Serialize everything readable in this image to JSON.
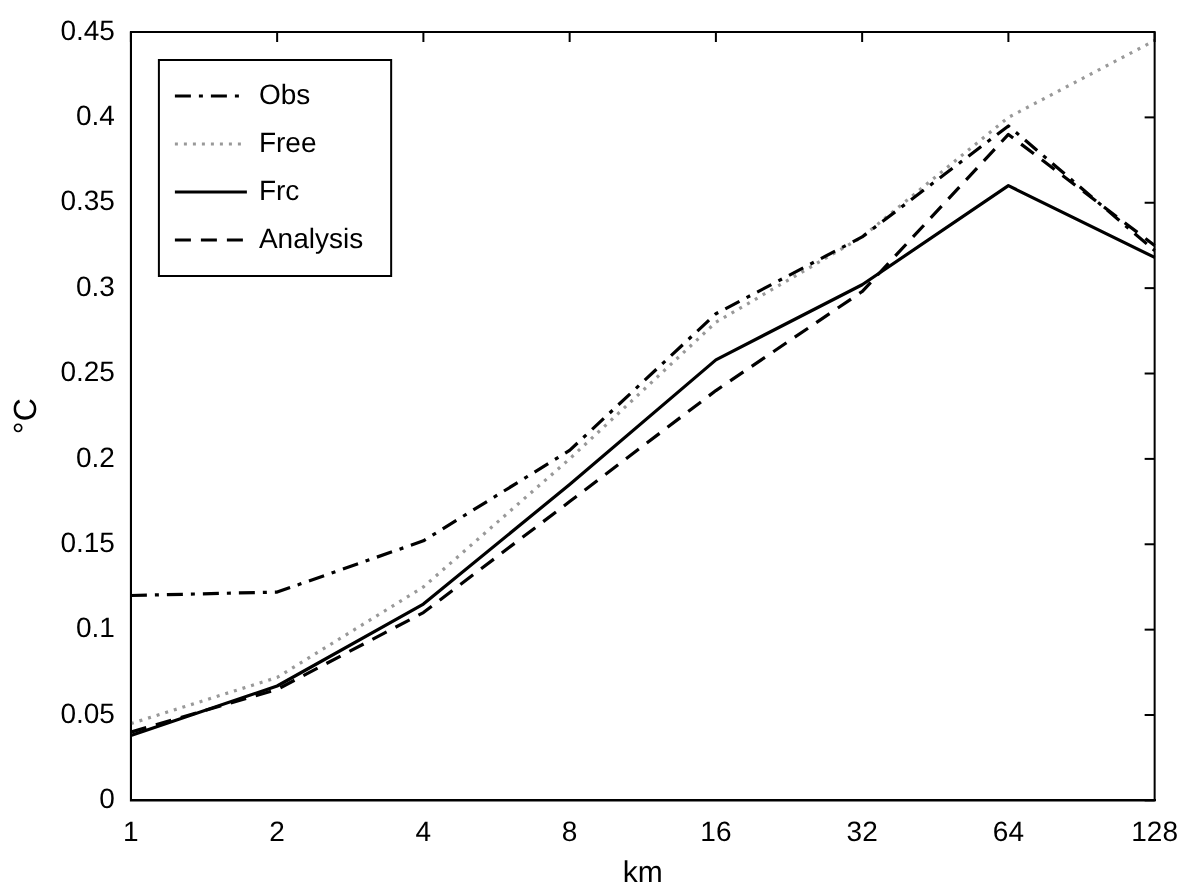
{
  "chart_data": {
    "type": "line",
    "xlabel": "km",
    "ylabel": "°C",
    "categories": [
      "1",
      "2",
      "4",
      "8",
      "16",
      "32",
      "64",
      "128"
    ],
    "series": [
      {
        "name": "Obs",
        "color": "#000000",
        "line_style": "dashdot",
        "values": [
          0.12,
          0.122,
          0.152,
          0.205,
          0.285,
          0.33,
          0.395,
          0.322
        ]
      },
      {
        "name": "Free",
        "color": "#999999",
        "line_style": "dotted",
        "values": [
          0.045,
          0.072,
          0.125,
          0.2,
          0.28,
          0.33,
          0.4,
          0.445
        ]
      },
      {
        "name": "Frc",
        "color": "#000000",
        "line_style": "solid",
        "values": [
          0.038,
          0.067,
          0.115,
          0.185,
          0.258,
          0.302,
          0.36,
          0.318
        ]
      },
      {
        "name": "Analysis",
        "color": "#000000",
        "line_style": "dashed",
        "values": [
          0.04,
          0.065,
          0.11,
          0.175,
          0.24,
          0.298,
          0.39,
          0.325
        ]
      }
    ],
    "ylim": [
      0,
      0.45
    ],
    "yticks": [
      0,
      0.05,
      0.1,
      0.15,
      0.2,
      0.25,
      0.3,
      0.35,
      0.4,
      0.45
    ],
    "grid": false,
    "legend": "top left",
    "marker": "none"
  }
}
